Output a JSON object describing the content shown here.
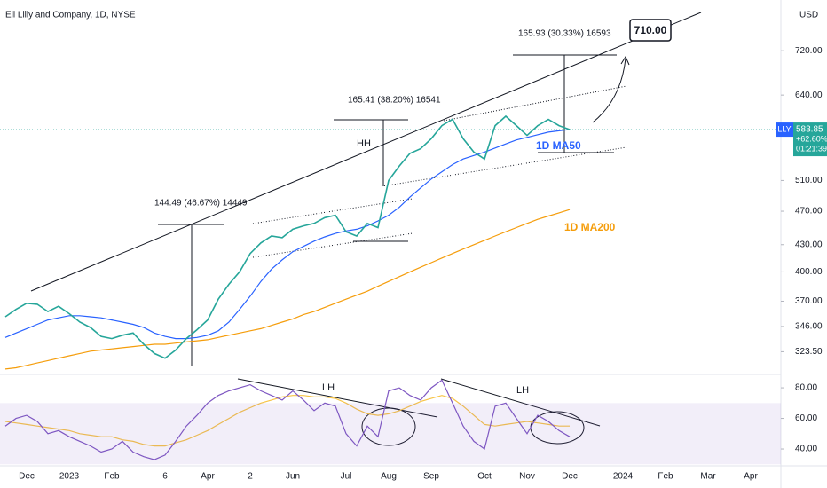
{
  "chart_data": [
    {
      "type": "line",
      "title": "Eli Lilly and Company, 1D, NYSE",
      "currency": "USD",
      "log": true,
      "categories": [
        null,
        null,
        "Dec",
        null,
        null,
        null,
        "2023",
        null,
        null,
        null,
        "Feb",
        null,
        null,
        null,
        null,
        "6",
        null,
        null,
        null,
        "Apr",
        null,
        null,
        null,
        "2",
        null,
        null,
        null,
        "Jun",
        null,
        null,
        null,
        null,
        "Jul",
        null,
        null,
        null,
        "Aug",
        null,
        null,
        null,
        "Sep",
        null,
        null,
        null,
        null,
        "Oct",
        null,
        null,
        null,
        "Nov",
        null,
        null,
        null,
        "Dec",
        null,
        null,
        null,
        null,
        "2024",
        null,
        null,
        null,
        "Feb",
        null,
        null,
        null,
        "Mar",
        null,
        null,
        null,
        "Apr"
      ],
      "series": [
        {
          "color": "#26a69a",
          "values": [
            355,
            362,
            368,
            367,
            360,
            365,
            358,
            350,
            345,
            337,
            335,
            338,
            340,
            330,
            322,
            318,
            325,
            335,
            343,
            352,
            372,
            387,
            400,
            420,
            432,
            440,
            438,
            448,
            452,
            455,
            462,
            465,
            445,
            440,
            455,
            450,
            510,
            530,
            548,
            555,
            570,
            590,
            600,
            570,
            550,
            540,
            590,
            605,
            590,
            575,
            590,
            600,
            590,
            584,
            null,
            null,
            null,
            null,
            null,
            null,
            null,
            null,
            null,
            null,
            null,
            null,
            null,
            null,
            null,
            null,
            null
          ]
        },
        {
          "name": "1D MA50",
          "color": "#2962ff",
          "values": [
            336,
            340,
            344,
            348,
            352,
            354,
            356,
            356,
            355,
            354,
            352,
            350,
            348,
            345,
            340,
            337,
            335,
            335,
            336,
            338,
            342,
            350,
            362,
            375,
            390,
            403,
            413,
            422,
            428,
            434,
            439,
            443,
            446,
            448,
            452,
            458,
            465,
            475,
            488,
            500,
            512,
            522,
            532,
            540,
            545,
            550,
            556,
            562,
            568,
            572,
            576,
            580,
            582,
            584,
            null,
            null,
            null,
            null,
            null,
            null,
            null,
            null,
            null,
            null,
            null,
            null,
            null,
            null,
            null,
            null,
            null
          ]
        },
        {
          "name": "1D MA200",
          "color": "#f59d0b",
          "values": [
            309,
            310,
            312,
            314,
            316,
            318,
            320,
            322,
            324,
            325,
            326,
            327,
            328,
            329,
            330,
            330,
            331,
            332,
            333,
            334,
            336,
            338,
            340,
            342,
            344,
            347,
            350,
            353,
            357,
            360,
            364,
            368,
            372,
            376,
            380,
            385,
            390,
            395,
            400,
            405,
            410,
            415,
            420,
            425,
            430,
            435,
            440,
            445,
            450,
            455,
            460,
            464,
            468,
            472,
            null,
            null,
            null,
            null,
            null,
            null,
            null,
            null,
            null,
            null,
            null,
            null,
            null,
            null,
            null,
            null,
            null
          ]
        }
      ],
      "ylim": [
        306,
        824
      ],
      "yticks": [
        {
          "value": 323.5,
          "label": "323.50"
        },
        {
          "value": 346,
          "label": "346.00"
        },
        {
          "value": 370,
          "label": "370.00"
        },
        {
          "value": 400,
          "label": "400.00"
        },
        {
          "value": 430,
          "label": "430.00"
        },
        {
          "value": 470,
          "label": "470.00"
        },
        {
          "value": 510,
          "label": "510.00"
        },
        {
          "value": 640,
          "label": "640.00"
        },
        {
          "value": 720,
          "label": "720.00"
        }
      ],
      "symbol": "LLY",
      "last_price": 583.85,
      "change": "+62.60%",
      "countdown": "01:21:39",
      "target": "710.00",
      "measures": [
        "144.49 (46.67%) 14449",
        "165.41 (38.20%) 16541",
        "165.93 (30.33%) 16593"
      ],
      "annotations": [
        "HH",
        "LH",
        "LH"
      ]
    },
    {
      "type": "line",
      "series": [
        {
          "color": "#7e57c2",
          "values": [
            55,
            60,
            62,
            58,
            50,
            52,
            48,
            45,
            42,
            38,
            40,
            45,
            38,
            35,
            33,
            36,
            45,
            55,
            62,
            70,
            75,
            78,
            80,
            82,
            78,
            75,
            72,
            78,
            72,
            65,
            70,
            68,
            50,
            42,
            55,
            48,
            78,
            80,
            75,
            72,
            80,
            85,
            70,
            55,
            45,
            40,
            68,
            70,
            60,
            50,
            62,
            58,
            52,
            48,
            null,
            null,
            null,
            null,
            null,
            null,
            null,
            null,
            null,
            null,
            null,
            null,
            null,
            null,
            null,
            null,
            null
          ]
        },
        {
          "color": "#f7c548",
          "values": [
            58,
            57,
            56,
            55,
            54,
            53,
            52,
            50,
            49,
            48,
            48,
            46,
            45,
            43,
            42,
            42,
            44,
            46,
            49,
            52,
            56,
            60,
            64,
            67,
            70,
            72,
            74,
            75,
            75,
            74,
            74,
            73,
            70,
            66,
            63,
            62,
            63,
            65,
            68,
            71,
            73,
            75,
            73,
            68,
            62,
            56,
            55,
            56,
            57,
            58,
            57,
            56,
            55,
            55,
            null,
            null,
            null,
            null,
            null,
            null,
            null,
            null,
            null,
            null,
            null,
            null,
            null,
            null,
            null,
            null,
            null
          ]
        }
      ],
      "band": [
        30,
        70
      ],
      "ylim": [
        29,
        87
      ],
      "yticks": [
        {
          "value": 40,
          "label": "40.00"
        },
        {
          "value": 60,
          "label": "60.00"
        },
        {
          "value": 80,
          "label": "80.00"
        }
      ]
    }
  ]
}
